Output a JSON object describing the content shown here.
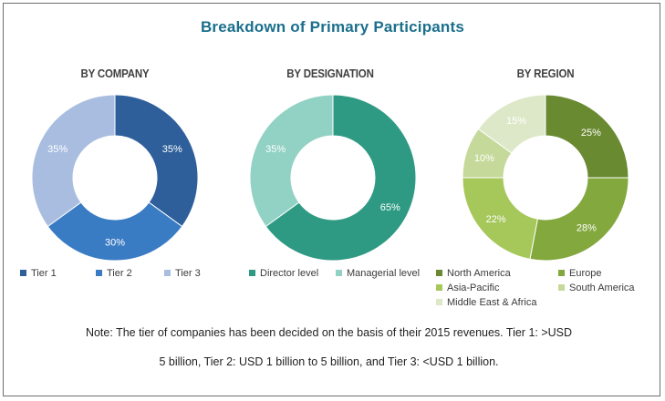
{
  "title": "Breakdown of Primary Participants",
  "note_line1": "Note: The tier of companies has been decided on the basis of their 2015 revenues. Tier 1: >USD",
  "note_line2": "5 billion, Tier 2: USD 1 billion to 5 billion, and Tier 3: <USD 1 billion.",
  "chart_data": [
    {
      "type": "pie",
      "title": "BY COMPANY",
      "categories": [
        "Tier 1",
        "Tier 2",
        "Tier 3"
      ],
      "values": [
        35,
        30,
        35
      ],
      "labels": [
        "35%",
        "30%",
        "35%"
      ],
      "colors": [
        "#2e5f9a",
        "#3a7cc4",
        "#a9bde0"
      ],
      "legend": "bottom"
    },
    {
      "type": "pie",
      "title": "BY DESIGNATION",
      "categories": [
        "Director level",
        "Managerial level"
      ],
      "values": [
        65,
        35
      ],
      "labels": [
        "65%",
        "35%"
      ],
      "colors": [
        "#2f9a83",
        "#92d2c4"
      ],
      "legend": "bottom"
    },
    {
      "type": "pie",
      "title": "BY REGION",
      "categories": [
        "North America",
        "Europe",
        "Asia-Pacific",
        "South America",
        "Middle East & Africa"
      ],
      "values": [
        25,
        28,
        22,
        10,
        15
      ],
      "labels": [
        "25%",
        "28%",
        "22%",
        "10%",
        "15%"
      ],
      "colors": [
        "#6a8a32",
        "#83a83e",
        "#a6c75a",
        "#c5d99a",
        "#dde8c8"
      ],
      "legend": "bottom"
    }
  ]
}
